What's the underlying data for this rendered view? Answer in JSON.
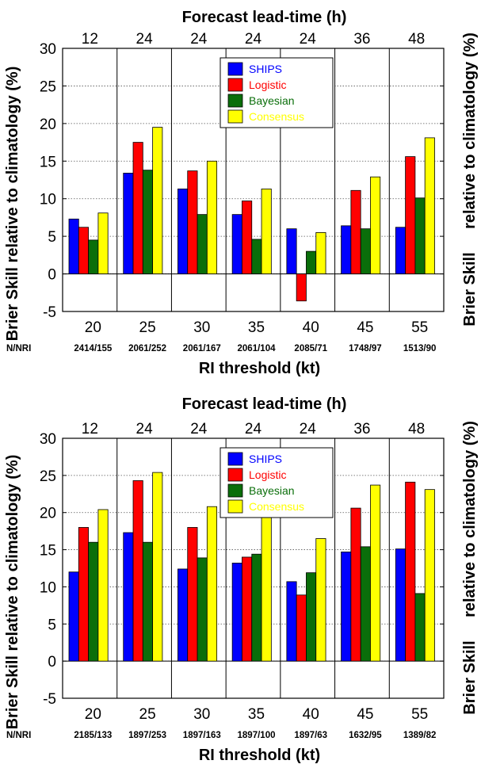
{
  "colors": {
    "SHIPS": "#0000ff",
    "Logistic": "#ff0000",
    "Bayesian": "#0a6e0a",
    "Consensus": "#ffff00"
  },
  "right_edge_label": "Brier Skill",
  "chart_data": [
    {
      "type": "bar",
      "top_title": "Forecast lead-time (h)",
      "lead_times": [
        "12",
        "24",
        "24",
        "24",
        "24",
        "36",
        "48"
      ],
      "categories": [
        "20",
        "25",
        "30",
        "35",
        "40",
        "45",
        "55"
      ],
      "counts_label": "N/NRI",
      "counts": [
        "2414/155",
        "2061/252",
        "2061/167",
        "2061/104",
        "2085/71",
        "1748/97",
        "1513/90"
      ],
      "xlabel": "RI threshold (kt)",
      "ylabel": "Brier Skill  relative to climatology (%)",
      "ylim": [
        -5,
        30
      ],
      "yticks": [
        -5,
        0,
        5,
        10,
        15,
        20,
        25,
        30
      ],
      "grid": true,
      "legend_position": "top-center",
      "series": [
        {
          "name": "SHIPS",
          "values": [
            7.3,
            13.4,
            11.3,
            7.9,
            6.0,
            6.4,
            6.2
          ]
        },
        {
          "name": "Logistic",
          "values": [
            6.2,
            17.5,
            13.7,
            9.7,
            -3.6,
            11.1,
            15.6
          ]
        },
        {
          "name": "Bayesian",
          "values": [
            4.5,
            13.8,
            7.9,
            4.6,
            3.0,
            6.0,
            10.1
          ]
        },
        {
          "name": "Consensus",
          "values": [
            8.1,
            19.5,
            15.0,
            11.3,
            5.5,
            12.9,
            18.1
          ]
        }
      ]
    },
    {
      "type": "bar",
      "top_title": "Forecast lead-time (h)",
      "lead_times": [
        "12",
        "24",
        "24",
        "24",
        "24",
        "36",
        "48"
      ],
      "categories": [
        "20",
        "25",
        "30",
        "35",
        "40",
        "45",
        "55"
      ],
      "counts_label": "N/NRI",
      "counts": [
        "2185/133",
        "1897/253",
        "1897/163",
        "1897/100",
        "1897/63",
        "1632/95",
        "1389/82"
      ],
      "xlabel": "RI threshold (kt)",
      "ylabel": "Brier Skill  relative to climatology (%)",
      "ylim": [
        -5,
        30
      ],
      "yticks": [
        -5,
        0,
        5,
        10,
        15,
        20,
        25,
        30
      ],
      "grid": true,
      "legend_position": "top-center",
      "series": [
        {
          "name": "SHIPS",
          "values": [
            12.0,
            17.3,
            12.4,
            13.2,
            10.7,
            14.7,
            15.1
          ]
        },
        {
          "name": "Logistic",
          "values": [
            18.0,
            24.3,
            18.0,
            14.0,
            8.9,
            20.6,
            24.1
          ]
        },
        {
          "name": "Bayesian",
          "values": [
            16.0,
            16.0,
            13.9,
            14.4,
            11.9,
            15.4,
            9.1
          ]
        },
        {
          "name": "Consensus",
          "values": [
            20.4,
            25.4,
            20.8,
            19.4,
            16.5,
            23.7,
            23.1
          ]
        }
      ]
    }
  ]
}
